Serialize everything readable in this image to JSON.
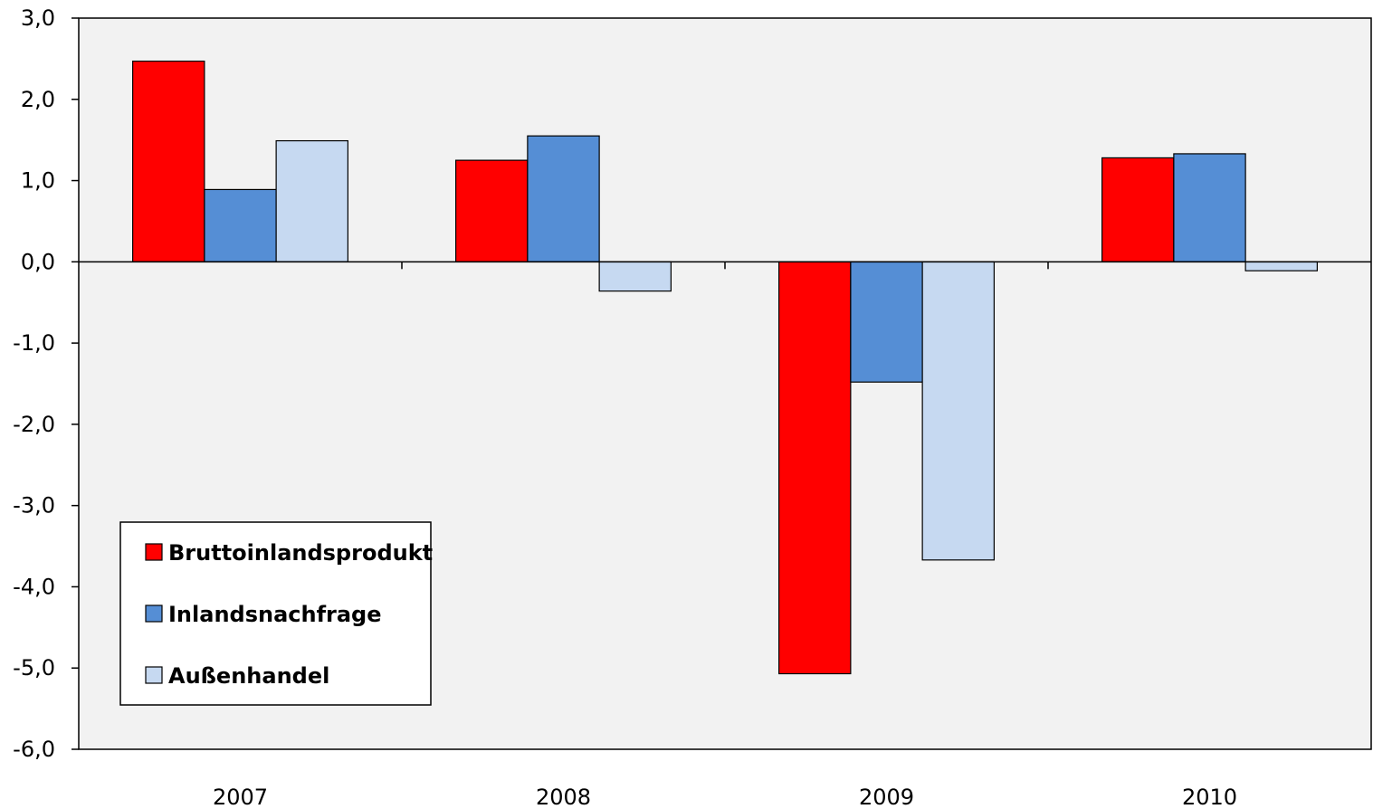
{
  "chart_data": {
    "type": "bar",
    "categories": [
      "2007",
      "2008",
      "2009",
      "2010"
    ],
    "series": [
      {
        "name": "Bruttoinlandsprodukt",
        "color": "#ff0000",
        "values": [
          2.47,
          1.25,
          -5.07,
          1.28
        ]
      },
      {
        "name": "Inlandsnachfrage",
        "color": "#558ed5",
        "values": [
          0.89,
          1.55,
          -1.48,
          1.33
        ]
      },
      {
        "name": "Außenhandel",
        "color": "#c6d9f1",
        "values": [
          1.49,
          -0.36,
          -3.67,
          -0.11
        ]
      }
    ],
    "ylim": [
      -6,
      3
    ],
    "yticks": [
      3,
      2,
      1,
      0,
      -1,
      -2,
      -3,
      -4,
      -5,
      -6
    ],
    "ytick_labels": [
      "3,0",
      "2,0",
      "1,0",
      "0,0",
      "-1,0",
      "-2,0",
      "-3,0",
      "-4,0",
      "-5,0",
      "-6,0"
    ],
    "legend_position": "bottom-left",
    "plot_background": "#f2f2f2",
    "grid": false
  }
}
